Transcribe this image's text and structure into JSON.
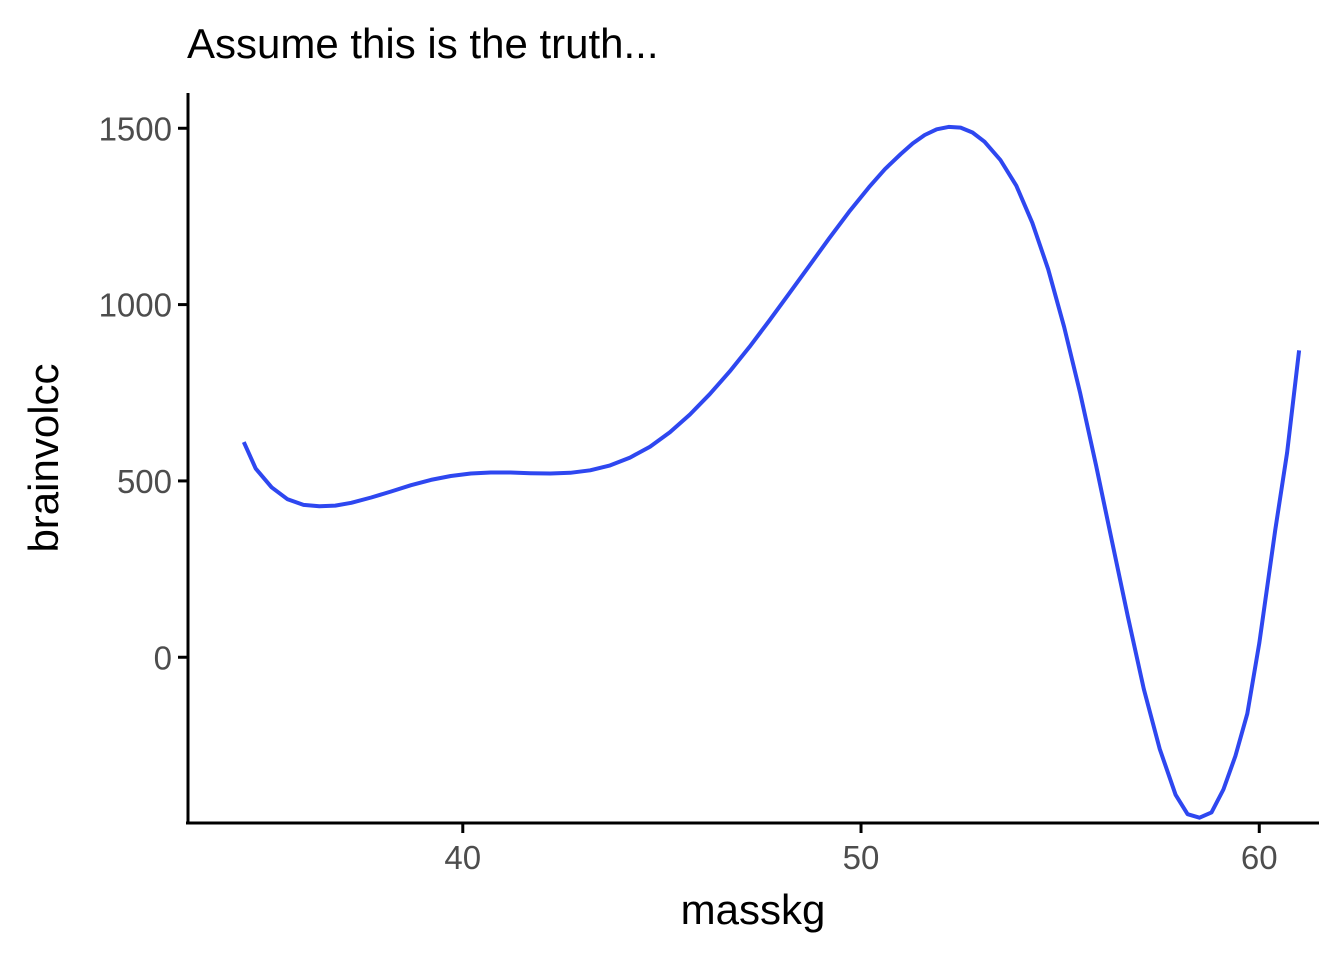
{
  "chart_data": {
    "type": "line",
    "title": "Assume this is the truth...",
    "xlabel": "masskg",
    "ylabel": "brainvolcc",
    "xlim": [
      33.1,
      61.5
    ],
    "ylim": [
      -470,
      1600
    ],
    "x_ticks": [
      40,
      50,
      60
    ],
    "x_tick_labels": [
      "40",
      "50",
      "60"
    ],
    "y_ticks": [
      0,
      500,
      1000,
      1500
    ],
    "y_tick_labels": [
      "0",
      "500",
      "1000",
      "1500"
    ],
    "grid": false,
    "legend": "none",
    "series": [
      {
        "color": "#2e47f0",
        "x": [
          34.5,
          34.8,
          35.2,
          35.6,
          36.0,
          36.4,
          36.8,
          37.2,
          37.7,
          38.2,
          38.7,
          39.2,
          39.7,
          40.2,
          40.7,
          41.2,
          41.7,
          42.2,
          42.7,
          43.2,
          43.7,
          44.2,
          44.7,
          45.2,
          45.7,
          46.2,
          46.7,
          47.2,
          47.7,
          48.2,
          48.7,
          49.2,
          49.7,
          50.2,
          50.6,
          51.0,
          51.3,
          51.6,
          51.9,
          52.2,
          52.5,
          52.8,
          53.1,
          53.5,
          53.9,
          54.3,
          54.7,
          55.1,
          55.5,
          55.9,
          56.3,
          56.7,
          57.1,
          57.5,
          57.9,
          58.2,
          58.5,
          58.8,
          59.1,
          59.4,
          59.7,
          60.0,
          60.4,
          60.7,
          61.0
        ],
        "y": [
          610,
          535,
          482,
          448,
          432,
          428,
          430,
          438,
          453,
          470,
          488,
          503,
          514,
          521,
          524,
          524,
          522,
          521,
          523,
          530,
          544,
          566,
          597,
          638,
          688,
          746,
          810,
          880,
          955,
          1032,
          1110,
          1188,
          1263,
          1333,
          1384,
          1427,
          1457,
          1481,
          1497,
          1504,
          1502,
          1488,
          1462,
          1410,
          1337,
          1232,
          1100,
          937,
          750,
          545,
          330,
          116,
          -90,
          -260,
          -390,
          -445,
          -455,
          -440,
          -375,
          -280,
          -160,
          40,
          360,
          580,
          870
        ]
      }
    ]
  }
}
